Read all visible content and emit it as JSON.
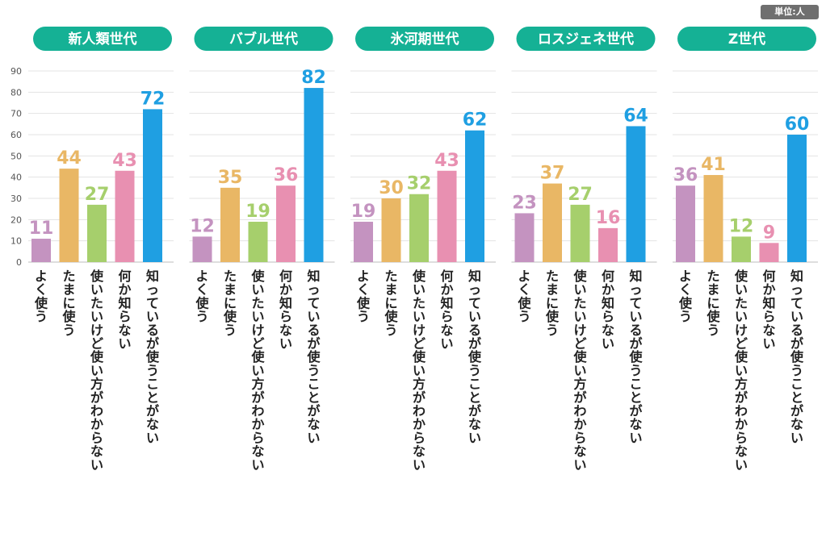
{
  "unit_label": "単位:人",
  "chart_data": {
    "type": "bar",
    "unit": "人",
    "ylim": [
      0,
      90
    ],
    "yticks": [
      0,
      10,
      20,
      30,
      40,
      50,
      60,
      70,
      80,
      90
    ],
    "grid": true,
    "categories": [
      "よく使う",
      "たまに使う",
      "使いたいけど使い方がわからない",
      "何か知らない",
      "知っているが使うことがない"
    ],
    "category_colors": [
      "#c493c0",
      "#e9b765",
      "#a6cf6c",
      "#e890b1",
      "#1f9fe2"
    ],
    "panels": [
      {
        "generation": "新人類世代",
        "values": [
          11,
          44,
          27,
          43,
          72
        ]
      },
      {
        "generation": "バブル世代",
        "values": [
          12,
          35,
          19,
          36,
          82
        ]
      },
      {
        "generation": "氷河期世代",
        "values": [
          19,
          30,
          32,
          43,
          62
        ]
      },
      {
        "generation": "ロスジェネ世代",
        "values": [
          23,
          37,
          27,
          16,
          64
        ]
      },
      {
        "generation": "Z世代",
        "values": [
          36,
          41,
          12,
          9,
          60
        ]
      }
    ],
    "title_badge_color": "#15b195"
  }
}
